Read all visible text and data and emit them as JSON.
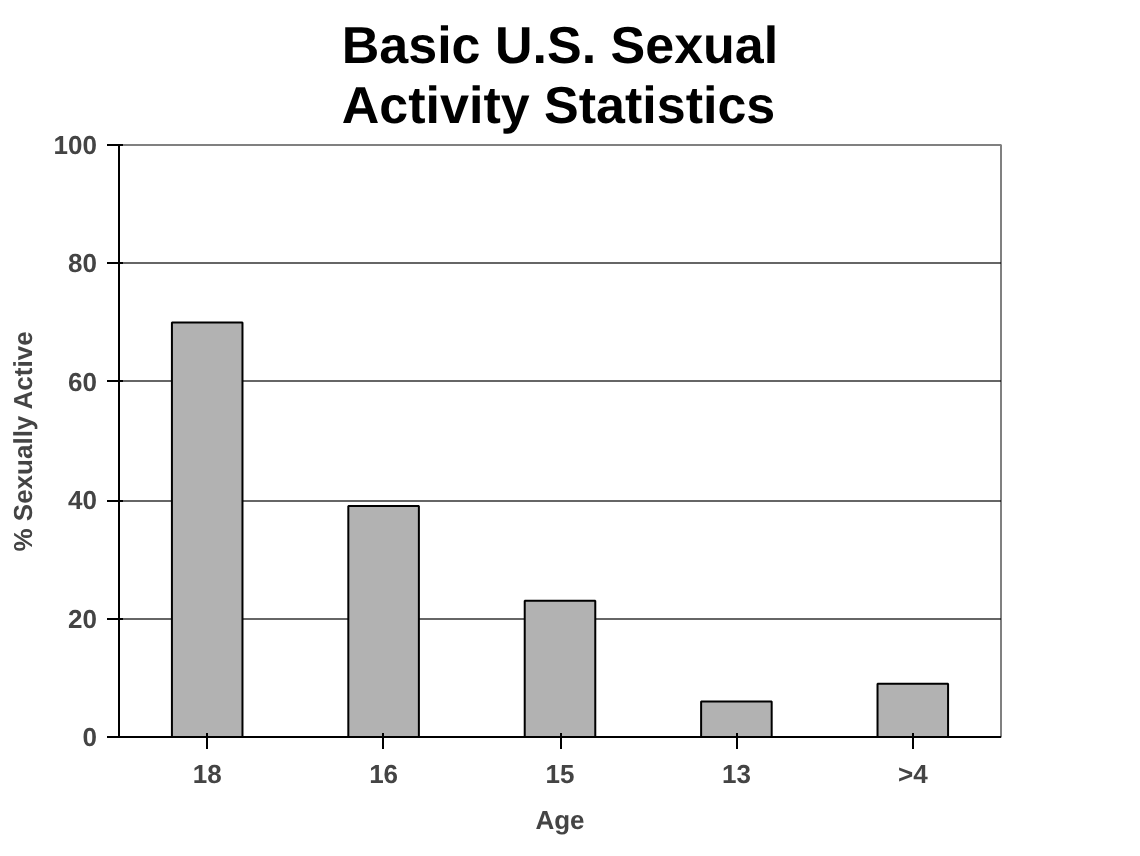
{
  "chart_data": {
    "type": "bar",
    "title": "Basic U.S. Sexual\nActivity Statistics",
    "xlabel": "Age",
    "ylabel": "% Sexually Active",
    "categories": [
      "18",
      "16",
      "15",
      "13",
      ">4"
    ],
    "values": [
      70,
      39,
      23,
      6,
      9
    ],
    "color": "#b2b2b2",
    "ylim": [
      0,
      100
    ],
    "yticks": [
      0,
      20,
      40,
      60,
      80,
      100
    ],
    "grid": "y"
  }
}
